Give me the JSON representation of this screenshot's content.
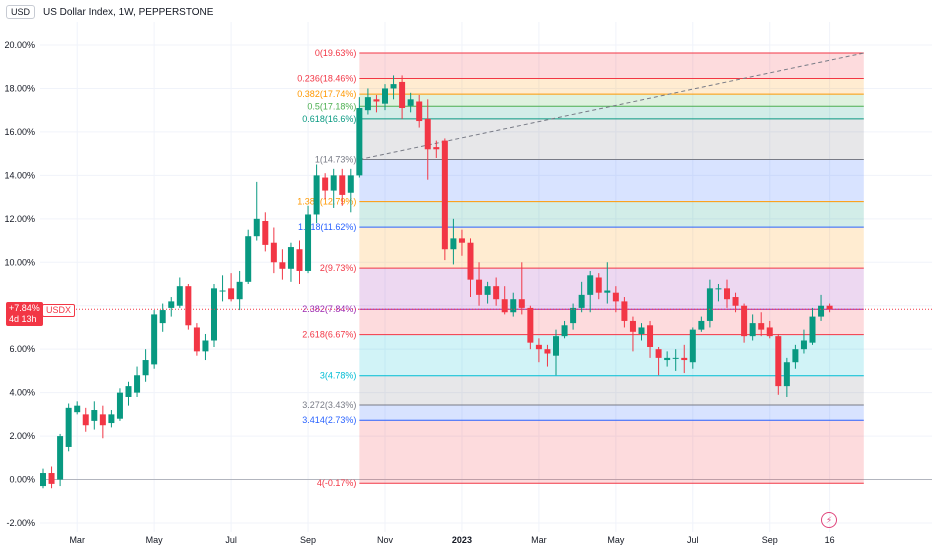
{
  "header": {
    "currency": "USD",
    "title": "US Dollar Index, 1W, PEPPERSTONE"
  },
  "last_price": {
    "label": "+7.84%",
    "countdown": "4d 13h",
    "symbol": "USDX",
    "color": "#f23645"
  },
  "icons": {
    "flash": "lightning-icon"
  },
  "colors": {
    "up": "#089981",
    "down": "#f23645",
    "grid": "#f0f3fa",
    "axis_text": "#131722"
  },
  "chart_data": {
    "type": "candlestick",
    "title": "US Dollar Index, 1W, PEPPERSTONE",
    "y_unit": "percent",
    "ylim": [
      -2.5,
      21.5
    ],
    "y_ticks": [
      "-2.00%",
      "0.00%",
      "2.00%",
      "4.00%",
      "6.00%",
      "8.00%",
      "10.00%",
      "12.00%",
      "14.00%",
      "16.00%",
      "18.00%",
      "20.00%"
    ],
    "y_tick_values": [
      -2,
      0,
      2,
      4,
      6,
      8,
      10,
      12,
      14,
      16,
      18,
      20
    ],
    "x_ticks": [
      {
        "label": "Mar",
        "week": 4
      },
      {
        "label": "May",
        "week": 13
      },
      {
        "label": "Jul",
        "week": 22
      },
      {
        "label": "Sep",
        "week": 31
      },
      {
        "label": "Nov",
        "week": 40
      },
      {
        "label": "2023",
        "week": 49
      },
      {
        "label": "Mar",
        "week": 58
      },
      {
        "label": "May",
        "week": 67
      },
      {
        "label": "Jul",
        "week": 76
      },
      {
        "label": "Sep",
        "week": 85
      },
      {
        "label": "16",
        "week": 92
      }
    ],
    "x_range_weeks": [
      -4.5,
      96
    ],
    "candles": [
      [
        0,
        -0.3,
        0.3,
        -0.4,
        0.5
      ],
      [
        1,
        0.3,
        -0.2,
        -0.4,
        0.6
      ],
      [
        2,
        0.0,
        2.0,
        -0.3,
        2.1
      ],
      [
        3,
        1.5,
        3.3,
        1.3,
        3.5
      ],
      [
        4,
        3.1,
        3.4,
        3.0,
        3.6
      ],
      [
        5,
        3.0,
        2.5,
        2.2,
        3.3
      ],
      [
        6,
        2.7,
        3.2,
        2.3,
        3.6
      ],
      [
        7,
        3.0,
        2.5,
        1.9,
        3.4
      ],
      [
        8,
        2.6,
        3.0,
        2.4,
        3.2
      ],
      [
        9,
        2.8,
        4.0,
        2.7,
        4.2
      ],
      [
        10,
        3.8,
        4.3,
        3.4,
        4.5
      ],
      [
        11,
        4.0,
        4.8,
        3.8,
        5.2
      ],
      [
        12,
        4.8,
        5.5,
        4.5,
        6.0
      ],
      [
        13,
        5.3,
        7.6,
        5.1,
        7.8
      ],
      [
        14,
        7.2,
        7.8,
        6.8,
        8.1
      ],
      [
        15,
        7.9,
        8.2,
        7.5,
        8.4
      ],
      [
        16,
        8.0,
        8.9,
        7.9,
        9.3
      ],
      [
        17,
        8.9,
        7.1,
        6.9,
        9.0
      ],
      [
        18,
        7.0,
        5.9,
        5.7,
        7.2
      ],
      [
        19,
        5.9,
        6.4,
        5.5,
        6.7
      ],
      [
        20,
        6.4,
        8.8,
        6.1,
        9.0
      ],
      [
        21,
        8.7,
        8.7,
        8.2,
        9.4
      ],
      [
        22,
        8.8,
        8.3,
        8.2,
        9.5
      ],
      [
        23,
        8.3,
        9.1,
        7.8,
        9.6
      ],
      [
        24,
        9.1,
        11.2,
        9.0,
        11.5
      ],
      [
        25,
        11.2,
        12.0,
        11.0,
        13.7
      ],
      [
        26,
        11.9,
        10.8,
        10.5,
        12.3
      ],
      [
        27,
        10.9,
        10.0,
        9.5,
        11.6
      ],
      [
        28,
        10.0,
        9.7,
        9.2,
        10.6
      ],
      [
        29,
        9.7,
        10.7,
        9.1,
        10.9
      ],
      [
        30,
        10.6,
        9.6,
        9.0,
        11.0
      ],
      [
        31,
        9.6,
        12.2,
        9.5,
        12.6
      ],
      [
        32,
        12.2,
        14.0,
        11.8,
        14.5
      ],
      [
        33,
        13.9,
        13.3,
        12.9,
        14.1
      ],
      [
        34,
        13.3,
        14.0,
        12.5,
        14.3
      ],
      [
        35,
        14.0,
        13.1,
        12.6,
        14.3
      ],
      [
        36,
        13.2,
        14.0,
        12.3,
        14.3
      ],
      [
        37,
        14.0,
        17.1,
        13.9,
        17.6
      ],
      [
        38,
        17.0,
        17.6,
        16.8,
        18.0
      ],
      [
        39,
        17.5,
        17.4,
        16.9,
        17.7
      ],
      [
        40,
        17.3,
        18.0,
        17.0,
        18.2
      ],
      [
        41,
        18.0,
        18.2,
        17.5,
        18.6
      ],
      [
        42,
        18.3,
        17.1,
        16.6,
        18.6
      ],
      [
        43,
        17.2,
        17.5,
        16.9,
        17.8
      ],
      [
        44,
        17.4,
        16.5,
        16.2,
        17.7
      ],
      [
        45,
        16.6,
        15.2,
        13.8,
        17.5
      ],
      [
        46,
        15.3,
        15.2,
        14.8,
        15.6
      ],
      [
        47,
        15.6,
        10.6,
        10.1,
        15.7
      ],
      [
        48,
        10.6,
        11.1,
        9.9,
        12.0
      ],
      [
        49,
        11.1,
        10.9,
        10.3,
        11.5
      ],
      [
        50,
        10.9,
        9.2,
        8.4,
        11.1
      ],
      [
        51,
        9.2,
        8.5,
        8.0,
        10.0
      ],
      [
        52,
        8.5,
        8.9,
        8.1,
        9.1
      ],
      [
        53,
        8.9,
        8.3,
        8.0,
        9.3
      ],
      [
        54,
        8.3,
        7.7,
        7.6,
        8.9
      ],
      [
        55,
        7.7,
        8.3,
        7.5,
        8.6
      ],
      [
        56,
        8.3,
        7.9,
        7.6,
        10.0
      ],
      [
        57,
        7.9,
        6.3,
        6.0,
        8.0
      ],
      [
        58,
        6.2,
        6.0,
        5.4,
        6.5
      ],
      [
        59,
        6.0,
        5.8,
        5.2,
        6.2
      ],
      [
        60,
        5.7,
        6.6,
        4.8,
        6.9
      ],
      [
        61,
        6.6,
        7.1,
        6.5,
        7.3
      ],
      [
        62,
        7.2,
        7.9,
        6.9,
        8.1
      ],
      [
        63,
        7.9,
        8.5,
        7.7,
        9.1
      ],
      [
        64,
        8.5,
        9.4,
        7.7,
        9.6
      ],
      [
        65,
        9.3,
        8.6,
        8.3,
        9.5
      ],
      [
        66,
        8.6,
        8.7,
        8.1,
        10.0
      ],
      [
        67,
        8.6,
        8.2,
        7.7,
        8.9
      ],
      [
        68,
        8.2,
        7.3,
        7.0,
        8.4
      ],
      [
        69,
        7.3,
        6.8,
        5.9,
        7.5
      ],
      [
        70,
        6.7,
        7.0,
        6.4,
        7.2
      ],
      [
        71,
        7.1,
        6.1,
        5.6,
        7.3
      ],
      [
        72,
        6.0,
        5.6,
        4.8,
        6.1
      ],
      [
        73,
        5.5,
        5.6,
        5.2,
        5.9
      ],
      [
        74,
        5.6,
        5.6,
        5.0,
        6.0
      ],
      [
        75,
        5.6,
        5.5,
        4.9,
        6.2
      ],
      [
        76,
        5.4,
        6.9,
        5.1,
        7.0
      ],
      [
        77,
        6.9,
        7.3,
        6.8,
        7.5
      ],
      [
        78,
        7.3,
        8.8,
        7.0,
        9.2
      ],
      [
        79,
        8.8,
        8.8,
        8.2,
        9.0
      ],
      [
        80,
        8.8,
        8.3,
        7.9,
        9.2
      ],
      [
        81,
        8.4,
        8.0,
        7.7,
        8.6
      ],
      [
        82,
        8.0,
        6.6,
        6.3,
        8.1
      ],
      [
        83,
        6.6,
        7.2,
        6.4,
        7.6
      ],
      [
        84,
        7.2,
        6.9,
        6.6,
        7.7
      ],
      [
        85,
        7.0,
        6.6,
        6.5,
        7.3
      ],
      [
        86,
        6.6,
        4.3,
        3.9,
        6.7
      ],
      [
        87,
        4.3,
        5.4,
        3.8,
        5.6
      ],
      [
        88,
        5.4,
        6.0,
        5.1,
        6.2
      ],
      [
        89,
        6.0,
        6.4,
        5.8,
        6.9
      ],
      [
        90,
        6.3,
        7.5,
        6.2,
        7.9
      ],
      [
        91,
        7.5,
        8.0,
        7.3,
        8.5
      ],
      [
        92,
        8.0,
        7.84,
        7.7,
        8.1
      ]
    ],
    "fib_retracement": {
      "levels": [
        {
          "label": "0(19.63%)",
          "value": 19.63,
          "color": "#f23645"
        },
        {
          "label": "0.236(18.46%)",
          "value": 18.46,
          "color": "#f23645"
        },
        {
          "label": "0.382(17.74%)",
          "value": 17.74,
          "color": "#ff9800"
        },
        {
          "label": "0.5(17.18%)",
          "value": 17.18,
          "color": "#4caf50"
        },
        {
          "label": "0.618(16.6%)",
          "value": 16.6,
          "color": "#089981"
        },
        {
          "label": "1(14.73%)",
          "value": 14.73,
          "color": "#787b86"
        },
        {
          "label": "1.382(12.79%)",
          "value": 12.79,
          "color": "#ff9800"
        },
        {
          "label": "1.618(11.62%)",
          "value": 11.62,
          "color": "#2962ff"
        },
        {
          "label": "2(9.73%)",
          "value": 9.73,
          "color": "#f23645"
        },
        {
          "label": "2.382(7.84%)",
          "value": 7.84,
          "color": "#9c27b0"
        },
        {
          "label": "2.618(6.67%)",
          "value": 6.67,
          "color": "#f23645"
        },
        {
          "label": "3(4.78%)",
          "value": 4.78,
          "color": "#00bcd4"
        },
        {
          "label": "3.272(3.43%)",
          "value": 3.43,
          "color": "#787b86"
        },
        {
          "label": "3.414(2.73%)",
          "value": 2.73,
          "color": "#2962ff"
        },
        {
          "label": "4(-0.17%)",
          "value": -0.17,
          "color": "#f23645"
        }
      ],
      "fills": [
        "#f23645",
        "#ff9800",
        "#4caf50",
        "#089981",
        "#787b86",
        "#2962ff",
        "#089981",
        "#ff9800",
        "#9c27b0",
        "#f23645",
        "#00bcd4",
        "#787b86",
        "#2962ff",
        "#f23645"
      ],
      "start_week": 37,
      "end_week": 96,
      "trend_from": {
        "week": 37,
        "value": 14.73
      },
      "trend_to": {
        "week": 96,
        "value": 19.63
      }
    },
    "last_value": 7.84
  }
}
